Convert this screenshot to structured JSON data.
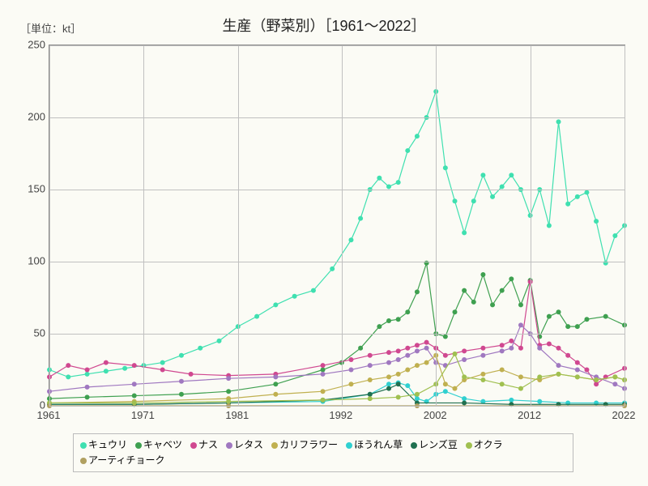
{
  "unit_label": "［単位：kt］",
  "title": "生産（野菜別）［1961～2022］",
  "chart": {
    "type": "line",
    "background_color": "#fbfbf5",
    "grid_color": "#c0c0c0",
    "axis_color": "#888888",
    "text_color": "#444444",
    "xlim": [
      1961,
      2022
    ],
    "ylim": [
      0,
      250
    ],
    "ytick_step": 50,
    "xticks": [
      1961,
      1971,
      1981,
      1992,
      2002,
      2012,
      2022
    ],
    "yticks": [
      0,
      50,
      100,
      150,
      200,
      250
    ],
    "marker_size": 3,
    "line_width": 1.2,
    "series": [
      {
        "name": "キュウリ",
        "color": "#3fe0b0",
        "years": [
          1961,
          1963,
          1965,
          1967,
          1969,
          1971,
          1973,
          1975,
          1977,
          1979,
          1981,
          1983,
          1985,
          1987,
          1989,
          1991,
          1993,
          1994,
          1995,
          1996,
          1997,
          1998,
          1999,
          2000,
          2001,
          2002,
          2003,
          2004,
          2005,
          2006,
          2007,
          2008,
          2009,
          2010,
          2011,
          2012,
          2013,
          2014,
          2015,
          2016,
          2017,
          2018,
          2019,
          2020,
          2021,
          2022
        ],
        "values": [
          25,
          20,
          22,
          24,
          26,
          28,
          30,
          35,
          40,
          45,
          55,
          62,
          70,
          76,
          80,
          95,
          115,
          130,
          150,
          158,
          152,
          155,
          177,
          187,
          200,
          218,
          165,
          142,
          120,
          142,
          160,
          145,
          152,
          160,
          150,
          132,
          150,
          125,
          197,
          140,
          145,
          148,
          128,
          99,
          118,
          125
        ]
      },
      {
        "name": "キャベツ",
        "color": "#3fa050",
        "years": [
          1961,
          1965,
          1970,
          1975,
          1980,
          1985,
          1990,
          1992,
          1994,
          1996,
          1997,
          1998,
          1999,
          2000,
          2001,
          2002,
          2003,
          2004,
          2005,
          2006,
          2007,
          2008,
          2009,
          2010,
          2011,
          2012,
          2013,
          2014,
          2015,
          2016,
          2017,
          2018,
          2020,
          2022
        ],
        "values": [
          5,
          6,
          7,
          8,
          10,
          15,
          25,
          30,
          40,
          55,
          59,
          60,
          65,
          79,
          99,
          50,
          48,
          65,
          80,
          72,
          91,
          70,
          80,
          88,
          70,
          87,
          48,
          62,
          65,
          55,
          55,
          60,
          62,
          56
        ]
      },
      {
        "name": "ナス",
        "color": "#d04890",
        "years": [
          1961,
          1963,
          1965,
          1967,
          1970,
          1973,
          1976,
          1980,
          1985,
          1990,
          1993,
          1995,
          1997,
          1998,
          1999,
          2000,
          2001,
          2002,
          2003,
          2005,
          2007,
          2009,
          2010,
          2011,
          2012,
          2013,
          2014,
          2015,
          2016,
          2017,
          2018,
          2019,
          2020,
          2022
        ],
        "values": [
          20,
          28,
          25,
          30,
          28,
          25,
          22,
          21,
          22,
          28,
          32,
          35,
          37,
          38,
          40,
          42,
          44,
          40,
          35,
          38,
          40,
          42,
          45,
          40,
          86,
          42,
          43,
          40,
          35,
          30,
          25,
          15,
          20,
          26
        ]
      },
      {
        "name": "レタス",
        "color": "#a078c0",
        "years": [
          1961,
          1965,
          1970,
          1975,
          1980,
          1985,
          1990,
          1993,
          1995,
          1997,
          1998,
          1999,
          2000,
          2001,
          2002,
          2003,
          2005,
          2007,
          2009,
          2010,
          2011,
          2012,
          2013,
          2015,
          2017,
          2019,
          2021,
          2022
        ],
        "values": [
          10,
          13,
          15,
          17,
          19,
          20,
          22,
          25,
          28,
          30,
          32,
          35,
          38,
          40,
          30,
          28,
          32,
          35,
          38,
          40,
          56,
          50,
          40,
          28,
          25,
          20,
          15,
          12
        ]
      },
      {
        "name": "カリフラワー",
        "color": "#c0b050",
        "years": [
          1961,
          1970,
          1980,
          1985,
          1990,
          1993,
          1995,
          1997,
          1998,
          1999,
          2000,
          2001,
          2002,
          2003,
          2004,
          2005,
          2007,
          2009,
          2011,
          2013,
          2015,
          2017,
          2019,
          2021,
          2022
        ],
        "values": [
          2,
          3,
          5,
          8,
          10,
          15,
          18,
          20,
          22,
          25,
          28,
          30,
          35,
          15,
          12,
          18,
          22,
          25,
          20,
          18,
          22,
          20,
          18,
          20,
          18
        ]
      },
      {
        "name": "ほうれん草",
        "color": "#30d0d0",
        "years": [
          1961,
          1970,
          1980,
          1990,
          1995,
          1997,
          1998,
          1999,
          2000,
          2001,
          2002,
          2003,
          2005,
          2007,
          2010,
          2013,
          2016,
          2019,
          2022
        ],
        "values": [
          1,
          1,
          2,
          3,
          8,
          15,
          16,
          14,
          5,
          3,
          8,
          10,
          5,
          3,
          4,
          3,
          2,
          2,
          2
        ]
      },
      {
        "name": "レンズ豆",
        "color": "#207050",
        "years": [
          1961,
          1970,
          1980,
          1990,
          1995,
          1997,
          1998,
          2000,
          2005,
          2010,
          2015,
          2020,
          2022
        ],
        "values": [
          1,
          1,
          2,
          4,
          8,
          12,
          15,
          2,
          2,
          1,
          1,
          1,
          1
        ]
      },
      {
        "name": "オクラ",
        "color": "#a0c050",
        "years": [
          1961,
          1970,
          1980,
          1990,
          1995,
          1998,
          2000,
          2002,
          2004,
          2005,
          2007,
          2009,
          2011,
          2013,
          2015,
          2017,
          2019,
          2021,
          2022
        ],
        "values": [
          2,
          2,
          3,
          4,
          5,
          6,
          8,
          15,
          36,
          20,
          18,
          15,
          12,
          20,
          22,
          20,
          18,
          20,
          18
        ]
      },
      {
        "name": "アーティチョーク",
        "color": "#b0a060",
        "years": [
          1961,
          1980,
          2000,
          2022
        ],
        "values": [
          0,
          0,
          0,
          0
        ]
      }
    ]
  },
  "legend_items": [
    {
      "label": "キュウリ",
      "color": "#3fe0b0"
    },
    {
      "label": "キャベツ",
      "color": "#3fa050"
    },
    {
      "label": "ナス",
      "color": "#d04890"
    },
    {
      "label": "レタス",
      "color": "#a078c0"
    },
    {
      "label": "カリフラワー",
      "color": "#c0b050"
    },
    {
      "label": "ほうれん草",
      "color": "#30d0d0"
    },
    {
      "label": "レンズ豆",
      "color": "#207050"
    },
    {
      "label": "オクラ",
      "color": "#a0c050"
    },
    {
      "label": "アーティチョーク",
      "color": "#b0a060"
    }
  ]
}
